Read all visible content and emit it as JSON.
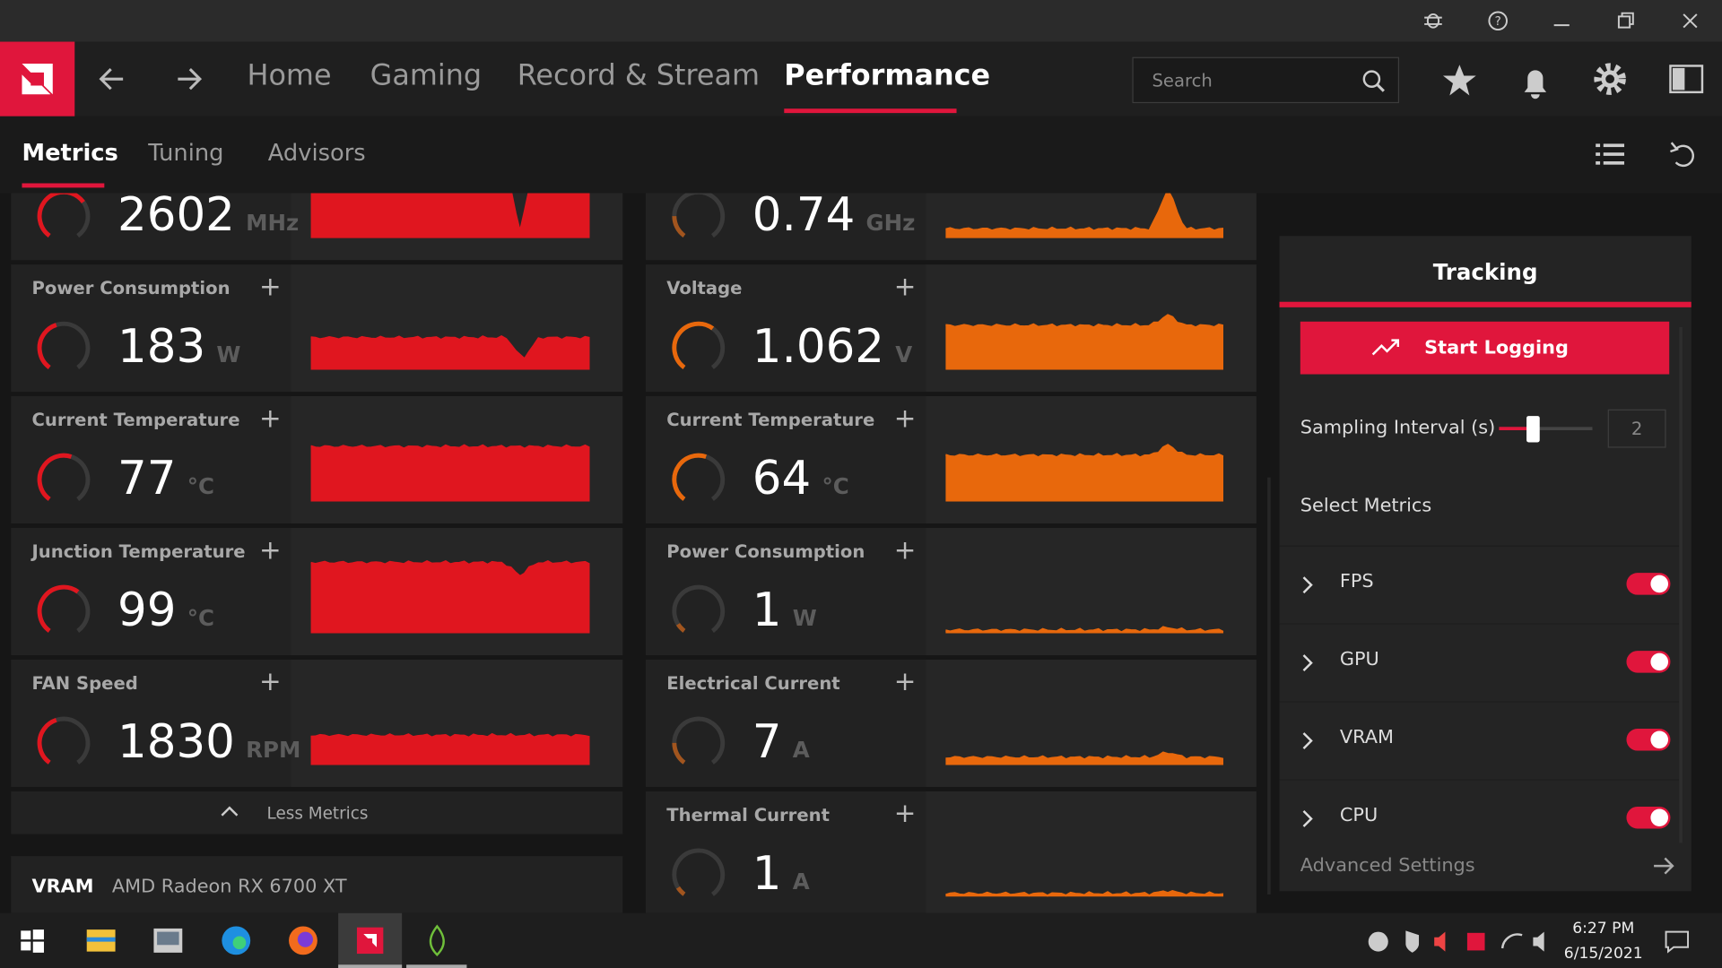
{
  "nav": {
    "tabs": [
      "Home",
      "Gaming",
      "Record & Stream",
      "Performance"
    ],
    "search_placeholder": "Search"
  },
  "subnav": {
    "tabs": [
      "Metrics",
      "Tuning",
      "Advisors"
    ]
  },
  "left_metrics": [
    {
      "value": 2602,
      "unit": "MHz",
      "color": "#e0161f"
    },
    {
      "name": "Power Consumption",
      "value": 183,
      "unit": "W",
      "color": "#e0161f"
    },
    {
      "name": "Current Temperature",
      "value": 77,
      "unit": "°C",
      "color": "#e0161f"
    },
    {
      "name": "Junction Temperature",
      "value": 99,
      "unit": "°C",
      "color": "#e0161f"
    },
    {
      "name": "FAN Speed",
      "value": 1830,
      "unit": "RPM",
      "color": "#e0161f"
    }
  ],
  "right_metrics": [
    {
      "value": 0.74,
      "unit": "GHz",
      "color": "#e8680c"
    },
    {
      "name": "Voltage",
      "value": 1.062,
      "unit": "V",
      "color": "#e8680c"
    },
    {
      "name": "Current Temperature",
      "value": 64,
      "unit": "°C",
      "color": "#e8680c"
    },
    {
      "name": "Power Consumption",
      "value": 1,
      "unit": "W",
      "color": "#e8680c"
    },
    {
      "name": "Electrical Current",
      "value": 7,
      "unit": "A",
      "color": "#e8680c"
    },
    {
      "name": "Thermal Current",
      "value": 1,
      "unit": "A",
      "color": "#e8680c"
    }
  ],
  "less_metrics": "Less Metrics",
  "vram": {
    "label": "VRAM",
    "name": "AMD Radeon RX 6700 XT"
  },
  "tracking": {
    "title": "Tracking",
    "start_logging": "Start Logging",
    "sampling_interval_label": "Sampling Interval (s)",
    "sampling_interval": 2,
    "select_metrics": "Select Metrics",
    "metrics": [
      "FPS",
      "GPU",
      "VRAM",
      "CPU"
    ],
    "advanced_settings": "Advanced Settings"
  },
  "taskbar": {
    "time": "6:27 PM",
    "date": "6/15/2021"
  }
}
